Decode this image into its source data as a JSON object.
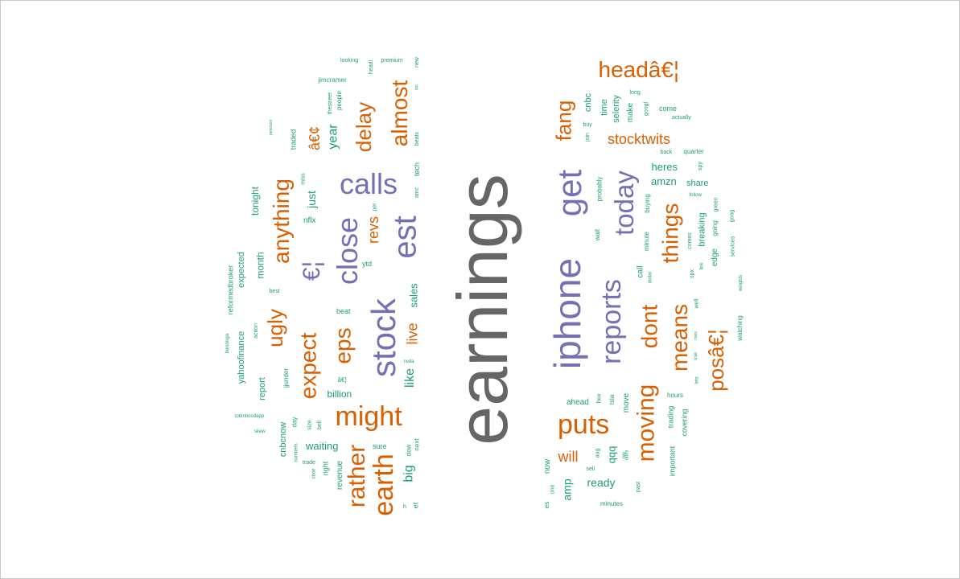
{
  "colors": {
    "gray": "#666666",
    "purple": "#7570b3",
    "orange": "#d95f02",
    "green": "#1b9e77"
  },
  "words": [
    {
      "t": "earnings",
      "c": "gray"
    },
    {
      "t": "iphone",
      "c": "purple"
    },
    {
      "t": "stock",
      "c": "purple"
    },
    {
      "t": "get",
      "c": "purple"
    },
    {
      "t": "est",
      "c": "purple"
    },
    {
      "t": "calls",
      "c": "purple"
    },
    {
      "t": "close",
      "c": "purple"
    },
    {
      "t": "reports",
      "c": "purple"
    },
    {
      "t": "today",
      "c": "purple"
    },
    {
      "t": "€¦",
      "c": "purple"
    },
    {
      "t": "might",
      "c": "orange"
    },
    {
      "t": "puts",
      "c": "orange"
    },
    {
      "t": "earth",
      "c": "orange"
    },
    {
      "t": "rather",
      "c": "orange"
    },
    {
      "t": "moving",
      "c": "orange"
    },
    {
      "t": "means",
      "c": "orange"
    },
    {
      "t": "expect",
      "c": "orange"
    },
    {
      "t": "eps",
      "c": "orange"
    },
    {
      "t": "ugly",
      "c": "orange"
    },
    {
      "t": "anything",
      "c": "orange"
    },
    {
      "t": "delay",
      "c": "orange"
    },
    {
      "t": "almost",
      "c": "orange"
    },
    {
      "t": "headâ€¦",
      "c": "orange"
    },
    {
      "t": "posâ€¦",
      "c": "orange"
    },
    {
      "t": "fang",
      "c": "orange"
    },
    {
      "t": "things",
      "c": "orange"
    },
    {
      "t": "dont",
      "c": "orange"
    },
    {
      "t": "stocktwits",
      "c": "orange"
    },
    {
      "t": "live",
      "c": "orange"
    },
    {
      "t": "revs",
      "c": "orange"
    },
    {
      "t": "will",
      "c": "orange"
    },
    {
      "t": "â€¢",
      "c": "orange"
    },
    {
      "t": "year",
      "c": "green"
    },
    {
      "t": "just",
      "c": "green"
    },
    {
      "t": "like",
      "c": "green"
    },
    {
      "t": "big",
      "c": "green"
    },
    {
      "t": "sales",
      "c": "green"
    },
    {
      "t": "amp",
      "c": "green"
    },
    {
      "t": "ready",
      "c": "green"
    },
    {
      "t": "waiting",
      "c": "green"
    },
    {
      "t": "billion",
      "c": "green"
    },
    {
      "t": "qqq",
      "c": "green"
    },
    {
      "t": "heres",
      "c": "green"
    },
    {
      "t": "amzn",
      "c": "green"
    },
    {
      "t": "share",
      "c": "green"
    },
    {
      "t": "tonight",
      "c": "green"
    },
    {
      "t": "month",
      "c": "green"
    },
    {
      "t": "expected",
      "c": "green"
    },
    {
      "t": "yahoofinance",
      "c": "green"
    },
    {
      "t": "reformedbroker",
      "c": "green"
    },
    {
      "t": "report",
      "c": "green"
    },
    {
      "t": "cnbcnow",
      "c": "green"
    },
    {
      "t": "revenue",
      "c": "green"
    },
    {
      "t": "right",
      "c": "green"
    },
    {
      "t": "dow",
      "c": "green"
    },
    {
      "t": "next",
      "c": "green"
    },
    {
      "t": "sure",
      "c": "green"
    },
    {
      "t": "beat",
      "c": "green"
    },
    {
      "t": "ytd",
      "c": "green"
    },
    {
      "t": "nflx",
      "c": "green"
    },
    {
      "t": "traded",
      "c": "green"
    },
    {
      "t": "people",
      "c": "green"
    },
    {
      "t": "thestreet",
      "c": "green"
    },
    {
      "t": "jimcramer",
      "c": "green"
    },
    {
      "t": "looking",
      "c": "green"
    },
    {
      "t": "premium",
      "c": "green"
    },
    {
      "t": "headl",
      "c": "green"
    },
    {
      "t": "new",
      "c": "green"
    },
    {
      "t": "beats",
      "c": "green"
    },
    {
      "t": "tech",
      "c": "green"
    },
    {
      "t": "amc",
      "c": "green"
    },
    {
      "t": "miss",
      "c": "green"
    },
    {
      "t": "cnbc",
      "c": "green"
    },
    {
      "t": "time",
      "c": "green"
    },
    {
      "t": "selerity",
      "c": "green"
    },
    {
      "t": "make",
      "c": "green"
    },
    {
      "t": "long",
      "c": "green"
    },
    {
      "t": "googl",
      "c": "green"
    },
    {
      "t": "come",
      "c": "green"
    },
    {
      "t": "actually",
      "c": "green"
    },
    {
      "t": "buy",
      "c": "green"
    },
    {
      "t": "join",
      "c": "green"
    },
    {
      "t": "back",
      "c": "green"
    },
    {
      "t": "quarter",
      "c": "green"
    },
    {
      "t": "spy",
      "c": "green"
    },
    {
      "t": "probably",
      "c": "green"
    },
    {
      "t": "buying",
      "c": "green"
    },
    {
      "t": "follow",
      "c": "green"
    },
    {
      "t": "green",
      "c": "green"
    },
    {
      "t": "goog",
      "c": "green"
    },
    {
      "t": "breaking",
      "c": "green"
    },
    {
      "t": "going",
      "c": "green"
    },
    {
      "t": "services",
      "c": "green"
    },
    {
      "t": "comes",
      "c": "green"
    },
    {
      "t": "edge",
      "c": "green"
    },
    {
      "t": "link",
      "c": "green"
    },
    {
      "t": "spx",
      "c": "green"
    },
    {
      "t": "weights",
      "c": "green"
    },
    {
      "t": "wait",
      "c": "green"
    },
    {
      "t": "minute",
      "c": "green"
    },
    {
      "t": "call",
      "c": "green"
    },
    {
      "t": "dollar",
      "c": "green"
    },
    {
      "t": "well",
      "c": "green"
    },
    {
      "t": "watching",
      "c": "green"
    },
    {
      "t": "lets",
      "c": "green"
    },
    {
      "t": "use",
      "c": "green"
    },
    {
      "t": "ahead",
      "c": "green"
    },
    {
      "t": "free",
      "c": "green"
    },
    {
      "t": "tsla",
      "c": "green"
    },
    {
      "t": "move",
      "c": "green"
    },
    {
      "t": "hours",
      "c": "green"
    },
    {
      "t": "trading",
      "c": "green"
    },
    {
      "t": "covering",
      "c": "green"
    },
    {
      "t": "important",
      "c": "green"
    },
    {
      "t": "units",
      "c": "green"
    },
    {
      "t": "aug",
      "c": "green"
    },
    {
      "t": "rev",
      "c": "green"
    },
    {
      "t": "sell",
      "c": "green"
    },
    {
      "t": "past",
      "c": "green"
    },
    {
      "t": "minutes",
      "c": "green"
    },
    {
      "t": "now",
      "c": "green"
    },
    {
      "t": "one",
      "c": "green"
    },
    {
      "t": "es",
      "c": "green"
    },
    {
      "t": "day",
      "c": "green"
    },
    {
      "t": "size",
      "c": "green"
    },
    {
      "t": "bell",
      "c": "green"
    },
    {
      "t": "numbers",
      "c": "green"
    },
    {
      "t": "trade",
      "c": "green"
    },
    {
      "t": "cboe",
      "c": "green"
    },
    {
      "t": "action",
      "c": "green"
    },
    {
      "t": "benzinga",
      "c": "green"
    },
    {
      "t": "robinhoodapp",
      "c": "green"
    },
    {
      "t": "skew",
      "c": "green"
    },
    {
      "t": "jjunder",
      "c": "green"
    },
    {
      "t": "best",
      "c": "green"
    },
    {
      "t": "nvda",
      "c": "green"
    },
    {
      "t": "per",
      "c": "green"
    },
    {
      "t": "â€¦",
      "c": "green"
    },
    {
      "t": "petersos",
      "c": "green"
    },
    {
      "t": "et",
      "c": "green"
    },
    {
      "t": "h",
      "c": "green"
    },
    {
      "t": "ipo",
      "c": "green"
    },
    {
      "t": "rises",
      "c": "green"
    }
  ]
}
